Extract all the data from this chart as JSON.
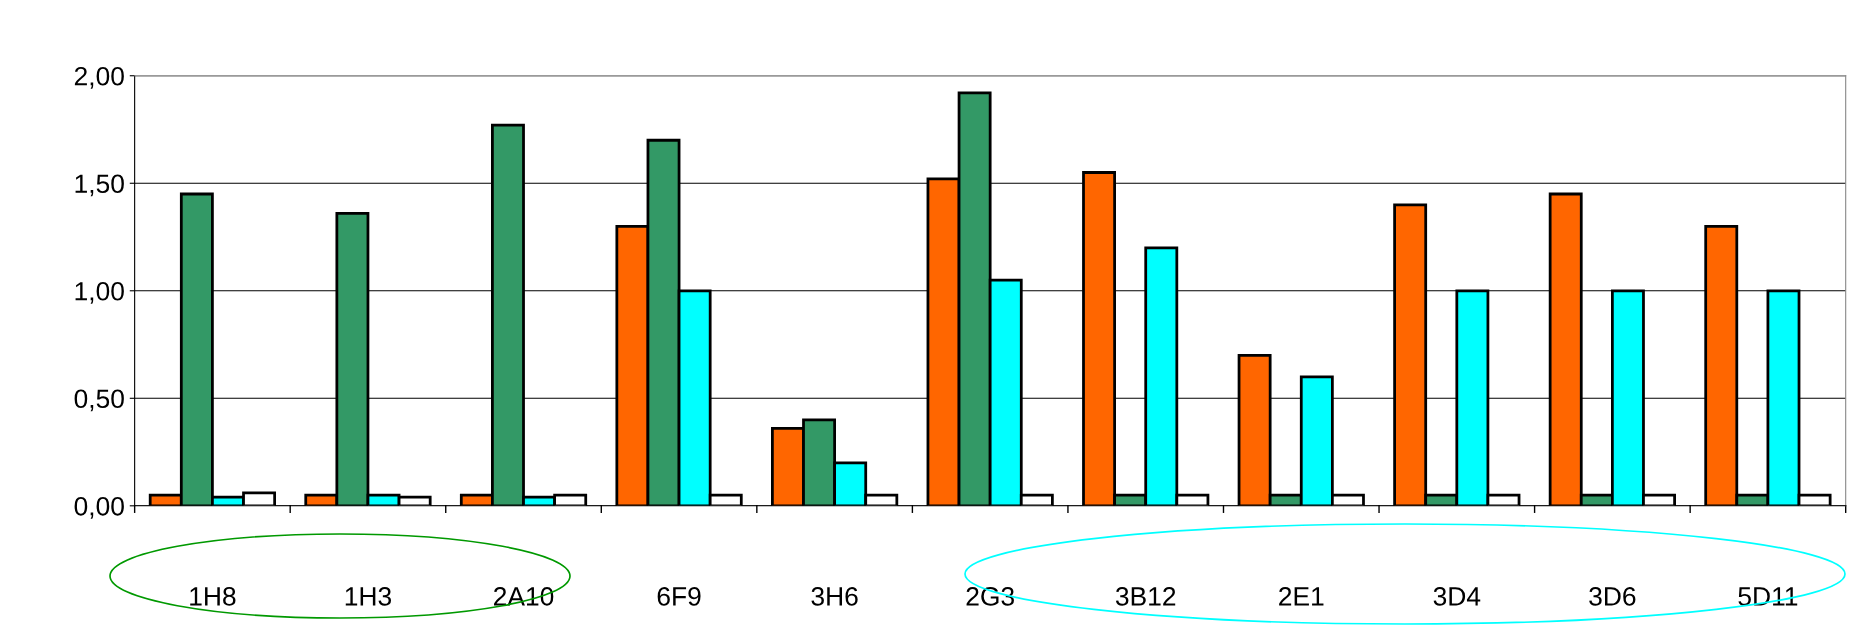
{
  "chart_data": {
    "type": "bar",
    "categories": [
      "1H8",
      "1H3",
      "2A10",
      "6F9",
      "3H6",
      "2G3",
      "3B12",
      "2E1",
      "3D4",
      "3D6",
      "5D11"
    ],
    "series": [
      {
        "color": "#ff6600",
        "values": [
          0.05,
          0.05,
          0.05,
          1.3,
          0.36,
          1.52,
          1.55,
          0.7,
          1.4,
          1.45,
          1.3
        ]
      },
      {
        "color": "#339966",
        "values": [
          1.45,
          1.36,
          1.77,
          1.7,
          0.4,
          1.92,
          0.05,
          0.05,
          0.05,
          0.05,
          0.05
        ]
      },
      {
        "color": "#00ffff",
        "values": [
          0.04,
          0.05,
          0.04,
          1.0,
          0.2,
          1.05,
          1.2,
          0.6,
          1.0,
          1.0,
          1.0
        ]
      },
      {
        "color": "#ffffff",
        "values": [
          0.06,
          0.04,
          0.05,
          0.05,
          0.05,
          0.05,
          0.05,
          0.05,
          0.05,
          0.05,
          0.05
        ]
      }
    ],
    "ylim": [
      0,
      2
    ],
    "yticks": [
      {
        "value": 0,
        "label": "0,00"
      },
      {
        "value": 0.5,
        "label": "0,50"
      },
      {
        "value": 1,
        "label": "1,00"
      },
      {
        "value": 1.5,
        "label": "1,50"
      },
      {
        "value": 2,
        "label": "2,00"
      }
    ],
    "grid": "y",
    "legend": false
  }
}
